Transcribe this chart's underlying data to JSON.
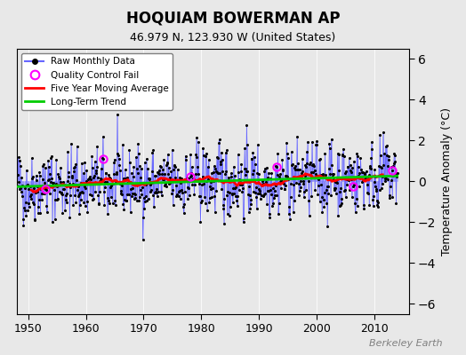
{
  "title": "HOQUIAM BOWERMAN AP",
  "subtitle": "46.979 N, 123.930 W (United States)",
  "ylabel": "Temperature Anomaly (°C)",
  "xlabel_years": [
    1950,
    1960,
    1970,
    1980,
    1990,
    2000,
    2010
  ],
  "xlim": [
    1948,
    2016
  ],
  "ylim": [
    -6.5,
    6.5
  ],
  "yticks": [
    -6,
    -4,
    -2,
    0,
    2,
    4,
    6
  ],
  "watermark": "Berkeley Earth",
  "bg_color": "#e8e8e8",
  "plot_bg_color": "#e8e8e8",
  "raw_line_color": "#6666ff",
  "raw_marker_color": "#000000",
  "moving_avg_color": "#ff0000",
  "trend_color": "#00cc00",
  "qc_fail_color": "#ff00ff",
  "seed": 42,
  "years_start": 1948,
  "years_end": 2014
}
